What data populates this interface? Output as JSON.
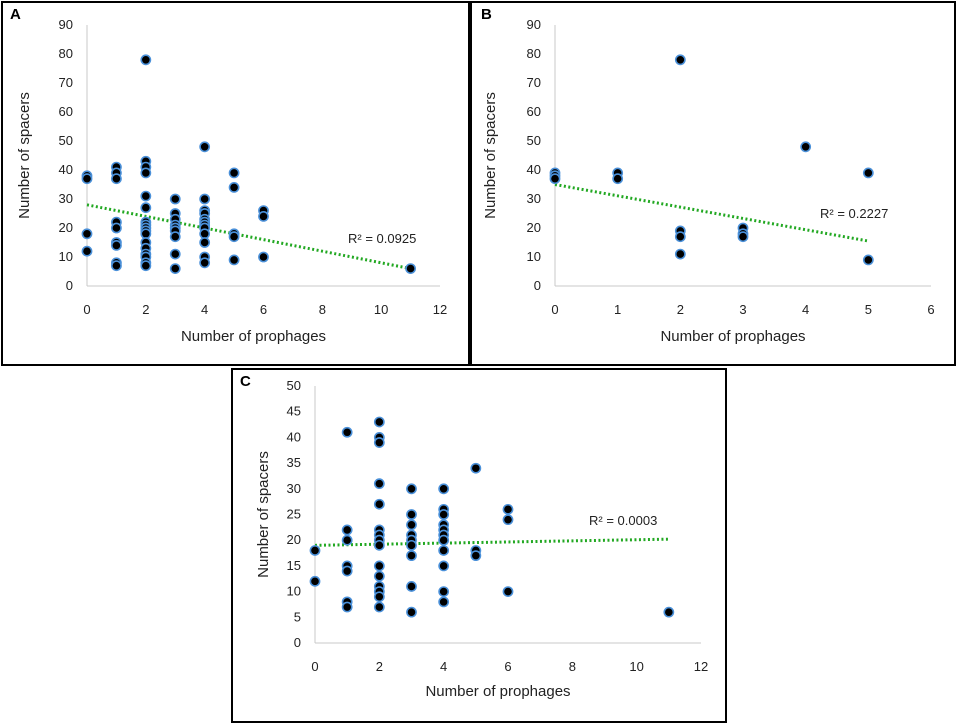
{
  "colors": {
    "point_fill": "#000000",
    "point_stroke": "#4a90d9",
    "trend": "#22a822",
    "axis": "#c8c8c8"
  },
  "chart_data": [
    {
      "id": "a",
      "panel_label": "A",
      "type": "scatter",
      "xlabel": "Number of prophages",
      "ylabel": "Number of spacers",
      "xlim": [
        0,
        12
      ],
      "ylim": [
        0,
        90
      ],
      "xticks": [
        0,
        2,
        4,
        6,
        8,
        10,
        12
      ],
      "yticks": [
        0,
        10,
        20,
        30,
        40,
        50,
        60,
        70,
        80,
        90
      ],
      "r2_label": "R² = 0.0925",
      "trendline": {
        "x": [
          0,
          11
        ],
        "y": [
          28,
          6
        ]
      },
      "points": [
        [
          0,
          38
        ],
        [
          0,
          37
        ],
        [
          0,
          18
        ],
        [
          0,
          12
        ],
        [
          1,
          41
        ],
        [
          1,
          39
        ],
        [
          1,
          37
        ],
        [
          1,
          22
        ],
        [
          1,
          20
        ],
        [
          1,
          15
        ],
        [
          1,
          14
        ],
        [
          1,
          8
        ],
        [
          1,
          7
        ],
        [
          2,
          78
        ],
        [
          2,
          43
        ],
        [
          2,
          41
        ],
        [
          2,
          39
        ],
        [
          2,
          31
        ],
        [
          2,
          27
        ],
        [
          2,
          22
        ],
        [
          2,
          21
        ],
        [
          2,
          20
        ],
        [
          2,
          19
        ],
        [
          2,
          18
        ],
        [
          2,
          15
        ],
        [
          2,
          13
        ],
        [
          2,
          11
        ],
        [
          2,
          10
        ],
        [
          2,
          8
        ],
        [
          2,
          7
        ],
        [
          3,
          30
        ],
        [
          3,
          25
        ],
        [
          3,
          23
        ],
        [
          3,
          21
        ],
        [
          3,
          20
        ],
        [
          3,
          19
        ],
        [
          3,
          17
        ],
        [
          3,
          11
        ],
        [
          3,
          6
        ],
        [
          4,
          48
        ],
        [
          4,
          30
        ],
        [
          4,
          26
        ],
        [
          4,
          25
        ],
        [
          4,
          23
        ],
        [
          4,
          22
        ],
        [
          4,
          21
        ],
        [
          4,
          20
        ],
        [
          4,
          18
        ],
        [
          4,
          15
        ],
        [
          4,
          10
        ],
        [
          4,
          8
        ],
        [
          5,
          39
        ],
        [
          5,
          34
        ],
        [
          5,
          18
        ],
        [
          5,
          17
        ],
        [
          5,
          9
        ],
        [
          6,
          26
        ],
        [
          6,
          24
        ],
        [
          6,
          10
        ],
        [
          11,
          6
        ]
      ]
    },
    {
      "id": "b",
      "panel_label": "B",
      "type": "scatter",
      "xlabel": "Number of prophages",
      "ylabel": "Number of spacers",
      "xlim": [
        0,
        6
      ],
      "ylim": [
        0,
        90
      ],
      "xticks": [
        0,
        1,
        2,
        3,
        4,
        5,
        6
      ],
      "yticks": [
        0,
        10,
        20,
        30,
        40,
        50,
        60,
        70,
        80,
        90
      ],
      "r2_label": "R² = 0.2227",
      "trendline": {
        "x": [
          0,
          5
        ],
        "y": [
          35,
          15.5
        ]
      },
      "points": [
        [
          0,
          39
        ],
        [
          0,
          38
        ],
        [
          0,
          37
        ],
        [
          1,
          39
        ],
        [
          1,
          37
        ],
        [
          2,
          78
        ],
        [
          2,
          19
        ],
        [
          2,
          17
        ],
        [
          2,
          11
        ],
        [
          3,
          20
        ],
        [
          3,
          18
        ],
        [
          3,
          17
        ],
        [
          4,
          48
        ],
        [
          5,
          39
        ],
        [
          5,
          9
        ]
      ]
    },
    {
      "id": "c",
      "panel_label": "C",
      "type": "scatter",
      "xlabel": "Number of prophages",
      "ylabel": "Number of spacers",
      "xlim": [
        0,
        12
      ],
      "ylim": [
        0,
        50
      ],
      "xticks": [
        0,
        2,
        4,
        6,
        8,
        10,
        12
      ],
      "yticks": [
        0,
        5,
        10,
        15,
        20,
        25,
        30,
        35,
        40,
        45,
        50
      ],
      "r2_label": "R² = 0.0003",
      "trendline": {
        "x": [
          0,
          11
        ],
        "y": [
          19,
          20.2
        ]
      },
      "points": [
        [
          0,
          18
        ],
        [
          0,
          12
        ],
        [
          1,
          41
        ],
        [
          1,
          22
        ],
        [
          1,
          20
        ],
        [
          1,
          15
        ],
        [
          1,
          14
        ],
        [
          1,
          8
        ],
        [
          1,
          7
        ],
        [
          2,
          43
        ],
        [
          2,
          40
        ],
        [
          2,
          39
        ],
        [
          2,
          31
        ],
        [
          2,
          27
        ],
        [
          2,
          22
        ],
        [
          2,
          21
        ],
        [
          2,
          20
        ],
        [
          2,
          19
        ],
        [
          2,
          15
        ],
        [
          2,
          13
        ],
        [
          2,
          11
        ],
        [
          2,
          10
        ],
        [
          2,
          9
        ],
        [
          2,
          7
        ],
        [
          3,
          30
        ],
        [
          3,
          25
        ],
        [
          3,
          23
        ],
        [
          3,
          21
        ],
        [
          3,
          20
        ],
        [
          3,
          19
        ],
        [
          3,
          17
        ],
        [
          3,
          11
        ],
        [
          3,
          6
        ],
        [
          4,
          30
        ],
        [
          4,
          26
        ],
        [
          4,
          25
        ],
        [
          4,
          23
        ],
        [
          4,
          22
        ],
        [
          4,
          21
        ],
        [
          4,
          20
        ],
        [
          4,
          18
        ],
        [
          4,
          15
        ],
        [
          4,
          10
        ],
        [
          4,
          8
        ],
        [
          5,
          34
        ],
        [
          5,
          18
        ],
        [
          5,
          17
        ],
        [
          6,
          26
        ],
        [
          6,
          24
        ],
        [
          6,
          10
        ],
        [
          11,
          6
        ]
      ]
    }
  ]
}
